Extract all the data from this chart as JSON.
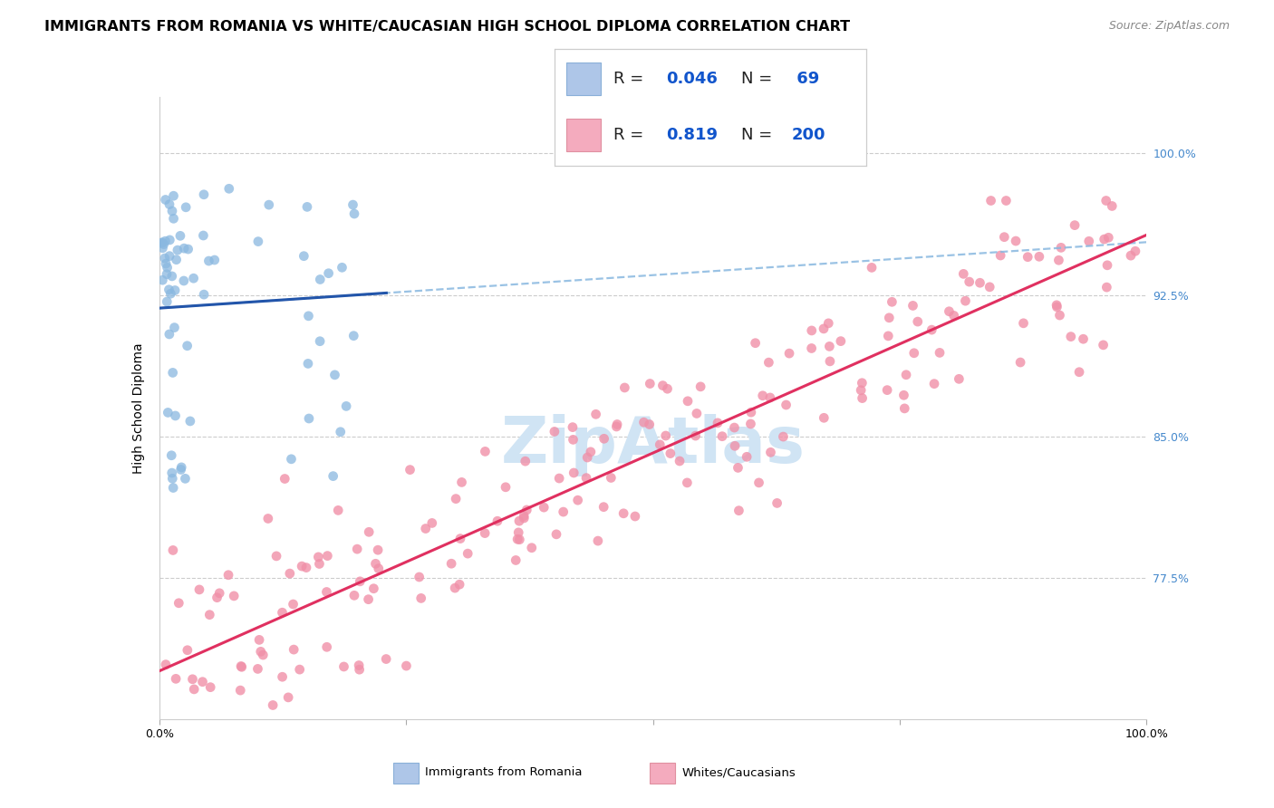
{
  "title": "IMMIGRANTS FROM ROMANIA VS WHITE/CAUCASIAN HIGH SCHOOL DIPLOMA CORRELATION CHART",
  "source": "Source: ZipAtlas.com",
  "ylabel": "High School Diploma",
  "ytick_labels": [
    "77.5%",
    "85.0%",
    "92.5%",
    "100.0%"
  ],
  "ytick_values": [
    0.775,
    0.85,
    0.925,
    1.0
  ],
  "xlim": [
    0.0,
    1.0
  ],
  "ylim": [
    0.7,
    1.03
  ],
  "legend_entries": [
    {
      "label": "Immigrants from Romania",
      "facecolor": "#aec6e8",
      "edgecolor": "#8ab0d8",
      "R": "0.046",
      "N": "69"
    },
    {
      "label": "Whites/Caucasians",
      "facecolor": "#f4abbe",
      "edgecolor": "#e090a0",
      "R": "0.819",
      "N": "200"
    }
  ],
  "blue_scatter_color": "#8ab8e0",
  "pink_scatter_color": "#f090a8",
  "blue_line_color": "#2255aa",
  "pink_line_color": "#e03060",
  "blue_dash_color": "#88b8e0",
  "watermark_text": "ZipAtlas",
  "watermark_color": "#d0e4f4",
  "title_fontsize": 11.5,
  "axis_label_fontsize": 10,
  "tick_fontsize": 9,
  "legend_fontsize": 13,
  "source_fontsize": 9,
  "right_tick_color": "#4488cc",
  "legend_R_color": "#1155cc",
  "legend_N_color": "#1155cc",
  "legend_text_color": "#222222"
}
